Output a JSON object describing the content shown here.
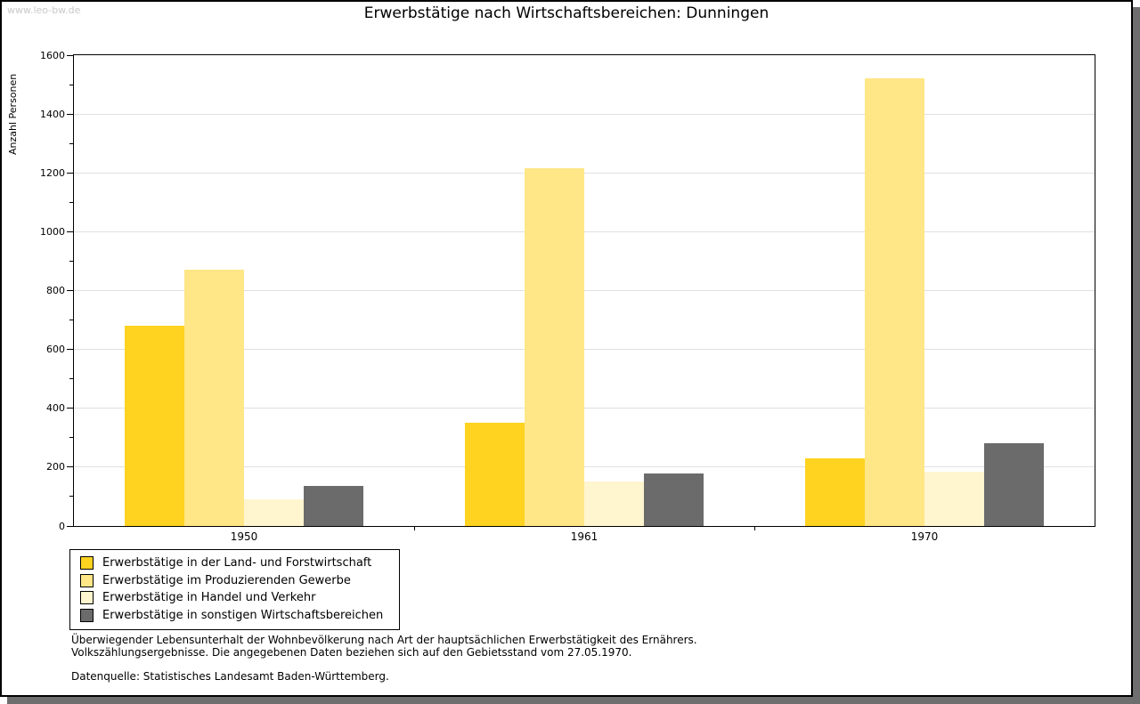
{
  "watermark": "www.leo-bw.de",
  "title": "Erwerbstätige nach Wirtschaftsbereichen: Dunningen",
  "chart_data": {
    "type": "bar",
    "title": "Erwerbstätige nach Wirtschaftsbereichen: Dunningen",
    "xlabel": "",
    "ylabel": "Anzahl Personen",
    "ylim": [
      0,
      1600
    ],
    "ytick_step": 200,
    "yminor_step": 100,
    "yticks": [
      0,
      200,
      400,
      600,
      800,
      1000,
      1200,
      1400,
      1600
    ],
    "grid": "horizontal-major-only",
    "legend_position": "bottom-left-boxed",
    "categories": [
      "1950",
      "1961",
      "1970"
    ],
    "series": [
      {
        "name": "Erwerbstätige in der Land- und Forstwirtschaft",
        "color": "#ffd320",
        "values": [
          680,
          350,
          230
        ]
      },
      {
        "name": "Erwerbstätige im Produzierenden Gewerbe",
        "color": "#ffe787",
        "values": [
          870,
          1215,
          1520
        ]
      },
      {
        "name": "Erwerbstätige in Handel und Verkehr",
        "color": "#fff5ce",
        "values": [
          90,
          150,
          185
        ]
      },
      {
        "name": "Erwerbstätige in sonstigen Wirtschaftsbereichen",
        "color": "#6b6b6b",
        "values": [
          135,
          180,
          280
        ]
      }
    ]
  },
  "footnotes": {
    "line1": "Überwiegender Lebensunterhalt der Wohnbevölkerung nach Art der hauptsächlichen Erwerbstätigkeit des Ernährers.",
    "line2": "Volkszählungsergebnisse. Die angegebenen Daten beziehen sich auf den Gebietsstand vom 27.05.1970.",
    "source": "Datenquelle: Statistisches Landesamt Baden-Württemberg."
  },
  "colors": {
    "gridline": "#e0e0e0",
    "watermark": "#c9c9c9",
    "shadow": "#6e6e6e",
    "frame_border": "#000000"
  }
}
